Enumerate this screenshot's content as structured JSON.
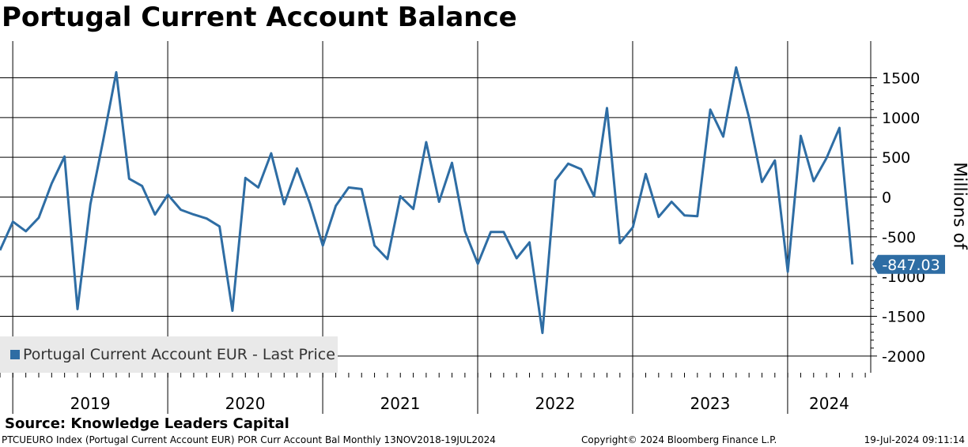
{
  "title": "Portugal Current Account Balance",
  "legend": {
    "label": "Portugal Current Account EUR - Last Price",
    "color": "#2e6da4"
  },
  "source": "Source: Knowledge Leaders Capital",
  "footer": {
    "left": "PTCUEURO Index (Portugal Current Account EUR) POR Curr Account Bal  Monthly 13NOV2018-19JUL2024",
    "middle": "Copyright© 2024 Bloomberg Finance L.P.",
    "right": "19-Jul-2024 09:11:14"
  },
  "chart_data": {
    "type": "line",
    "title": "Portugal Current Account Balance",
    "ylabel": "Millions of",
    "xlabel": "",
    "ylim": [
      -2200,
      1950
    ],
    "yticks": [
      1500,
      1000,
      500,
      0,
      -500,
      -1000,
      -1500,
      -2000
    ],
    "ytick_labels": [
      "1500",
      "1000",
      "500",
      "0",
      "-500",
      "-1000",
      "-1500",
      "-2000"
    ],
    "year_labels": [
      "2019",
      "2020",
      "2021",
      "2022",
      "2023",
      "2024"
    ],
    "last_value": -847.03,
    "last_value_label": "-847.03",
    "series": [
      {
        "name": "Portugal Current Account EUR - Last Price",
        "start": "2018-11",
        "values": [
          -670,
          -310,
          -430,
          -260,
          170,
          510,
          -1410,
          -90,
          720,
          1570,
          230,
          140,
          -220,
          30,
          -160,
          -220,
          -270,
          -370,
          -1430,
          240,
          120,
          550,
          -90,
          360,
          -80,
          -610,
          -110,
          120,
          100,
          -610,
          -780,
          10,
          -150,
          690,
          -60,
          430,
          -430,
          -840,
          -440,
          -440,
          -770,
          -570,
          -1710,
          210,
          420,
          350,
          10,
          1120,
          -580,
          -380,
          290,
          -250,
          -60,
          -230,
          -240,
          1100,
          760,
          1630,
          1000,
          190,
          460,
          -940,
          770,
          200,
          490,
          870,
          -847.03
        ]
      }
    ]
  }
}
